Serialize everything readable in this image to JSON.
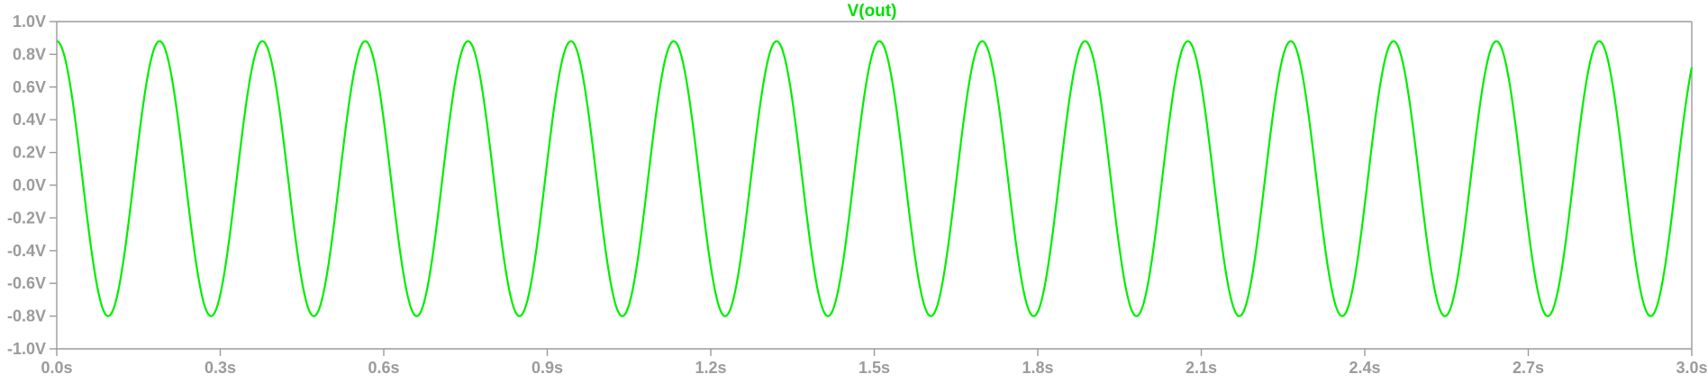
{
  "chart_data": {
    "type": "line",
    "title": "V(out)",
    "title_color": "#00e000",
    "trace_color": "#00ee00",
    "axis_color": "#9b9b9b",
    "xlim": [
      0.0,
      3.0
    ],
    "ylim": [
      -1.0,
      1.0
    ],
    "x_ticks": [
      0.0,
      0.3,
      0.6,
      0.9,
      1.2,
      1.5,
      1.8,
      2.1,
      2.4,
      2.7,
      3.0
    ],
    "x_tick_labels": [
      "0.0s",
      "0.3s",
      "0.6s",
      "0.9s",
      "1.2s",
      "1.5s",
      "1.8s",
      "2.1s",
      "2.4s",
      "2.7s",
      "3.0s"
    ],
    "y_ticks": [
      1.0,
      0.8,
      0.6,
      0.4,
      0.2,
      0.0,
      -0.2,
      -0.4,
      -0.6,
      -0.8,
      -1.0
    ],
    "y_tick_labels": [
      "1.0V",
      "0.8V",
      "0.6V",
      "0.4V",
      "0.2V",
      "0.0V",
      "-0.2V",
      "-0.4V",
      "-0.6V",
      "-0.8V",
      "-1.0V"
    ],
    "grid": false,
    "series": [
      {
        "name": "V(out)",
        "waveform": "sine",
        "frequency_hz": 5.3,
        "amplitude_v": 0.84,
        "offset_v": 0.04,
        "phase_start": "peak",
        "peak_v": 0.88,
        "trough_v": -0.8
      }
    ]
  }
}
